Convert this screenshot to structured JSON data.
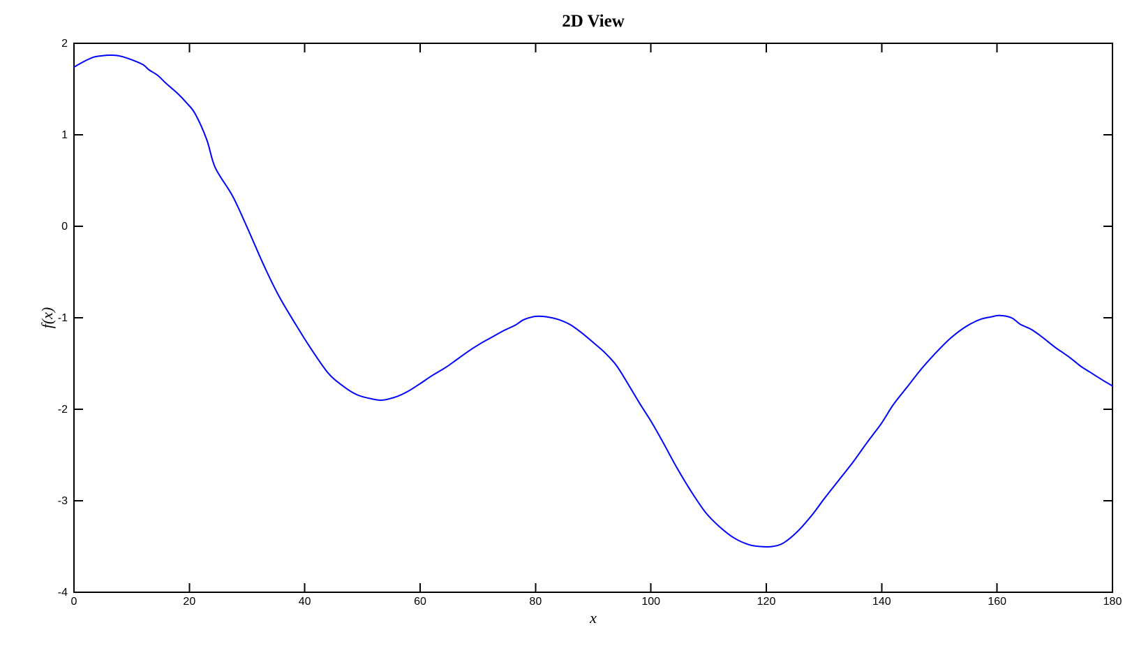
{
  "chart_data": {
    "type": "line",
    "title": "2D View",
    "xlabel": "x",
    "ylabel": "f(x)",
    "xlim": [
      0,
      180
    ],
    "ylim": [
      -4,
      2
    ],
    "xticks": [
      0,
      20,
      40,
      60,
      80,
      100,
      120,
      140,
      160,
      180
    ],
    "yticks": [
      -4,
      -3,
      -2,
      -1,
      0,
      1,
      2
    ],
    "grid": false,
    "legend": false,
    "box": true,
    "tick_direction": "in",
    "frame_color": "#000000",
    "background_color": "#ffffff",
    "series": [
      {
        "name": "f(x)",
        "color": "#0000ff",
        "x": [
          0,
          2,
          3.5,
          5,
          6.5,
          8,
          10,
          12,
          13,
          14.5,
          16,
          18,
          19.5,
          21,
          23,
          24.5,
          27.5,
          30,
          33,
          35.5,
          38.5,
          41,
          44,
          46.5,
          49,
          51.5,
          53.5,
          56,
          58,
          60,
          62,
          64.5,
          66.5,
          68.5,
          70.5,
          72.5,
          74.5,
          76.5,
          78,
          80,
          82,
          84,
          86,
          88,
          90,
          92,
          94,
          96,
          98,
          100,
          102,
          104.5,
          107,
          109.5,
          112,
          114.5,
          117,
          119,
          121,
          123,
          125.5,
          128,
          130,
          132.5,
          135,
          137.5,
          140,
          142,
          144.5,
          147,
          149.5,
          152,
          154.5,
          157,
          159,
          160.5,
          162.5,
          164,
          166,
          168,
          170,
          172.5,
          174.5,
          176,
          178,
          180
        ],
        "y": [
          1.74,
          1.81,
          1.85,
          1.865,
          1.87,
          1.86,
          1.82,
          1.765,
          1.71,
          1.65,
          1.56,
          1.45,
          1.35,
          1.23,
          0.95,
          0.64,
          0.33,
          -0.01,
          -0.44,
          -0.76,
          -1.08,
          -1.33,
          -1.6,
          -1.74,
          -1.84,
          -1.885,
          -1.9,
          -1.86,
          -1.8,
          -1.72,
          -1.635,
          -1.54,
          -1.45,
          -1.36,
          -1.28,
          -1.21,
          -1.14,
          -1.08,
          -1.02,
          -0.985,
          -0.99,
          -1.02,
          -1.075,
          -1.165,
          -1.27,
          -1.38,
          -1.52,
          -1.72,
          -1.93,
          -2.13,
          -2.35,
          -2.64,
          -2.9,
          -3.13,
          -3.29,
          -3.41,
          -3.48,
          -3.5,
          -3.5,
          -3.46,
          -3.33,
          -3.15,
          -2.98,
          -2.78,
          -2.58,
          -2.36,
          -2.15,
          -1.95,
          -1.75,
          -1.55,
          -1.375,
          -1.22,
          -1.1,
          -1.02,
          -0.99,
          -0.975,
          -1.0,
          -1.07,
          -1.13,
          -1.22,
          -1.32,
          -1.43,
          -1.53,
          -1.59,
          -1.67,
          -1.745
        ]
      }
    ],
    "annotations": {
      "local_max_1": {
        "x": 6.5,
        "y": 1.87
      },
      "local_min_1": {
        "x": 53.5,
        "y": -1.9
      },
      "local_max_2": {
        "x": 80,
        "y": -0.985
      },
      "local_min_2": {
        "x": 120,
        "y": -3.5
      },
      "local_max_3": {
        "x": 160,
        "y": -0.975
      }
    }
  }
}
